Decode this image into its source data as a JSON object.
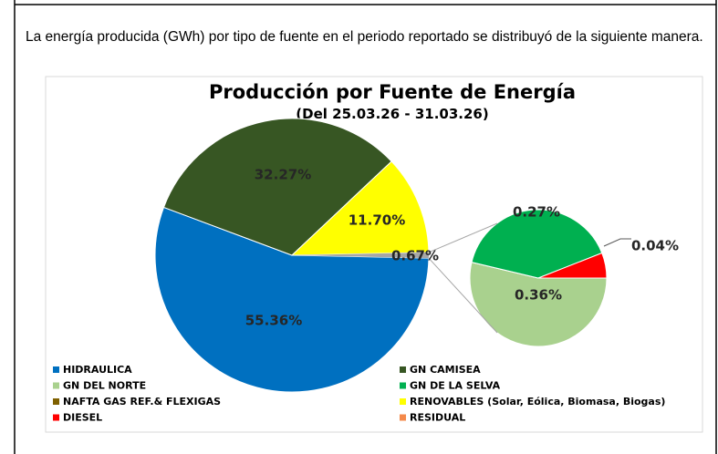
{
  "paragraph": "La energía producida (GWh) por tipo de fuente en el periodo reportado se distribuyó de la siguiente manera.",
  "chart_data": {
    "type": "pie",
    "title": "Producción por Fuente de Energía",
    "subtitle": "(Del 25.03.26 - 31.03.26)",
    "categories": [
      "HIDRAULICA",
      "GN CAMISEA",
      "GN DEL NORTE",
      "GN DE LA SELVA",
      "NAFTA GAS REF.& FLEXIGAS",
      "RENOVABLES (Solar, Eólica, Biomasa, Biogas)",
      "DIESEL",
      "RESIDUAL"
    ],
    "colors": [
      "#0070c0",
      "#375623",
      "#a9d18e",
      "#00b050",
      "#7f6000",
      "#ffff00",
      "#ff0000",
      "#f4894a"
    ],
    "values": [
      55.36,
      32.27,
      0.36,
      0.27,
      0,
      11.7,
      0.04,
      0
    ],
    "value_labels": [
      "55.36%",
      "32.27%",
      "0.36%",
      "0.27%",
      null,
      "11.70%",
      "0.04%",
      null
    ],
    "other": {
      "value": 0.67,
      "label": "0.67%",
      "color": "#a6a6a6"
    }
  }
}
